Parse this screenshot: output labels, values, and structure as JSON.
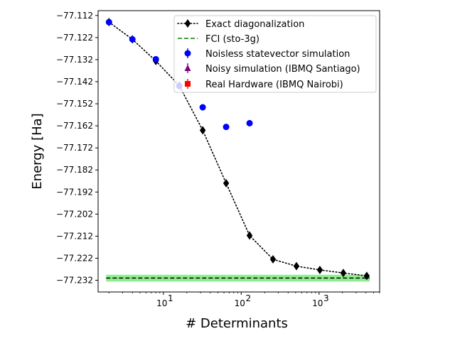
{
  "chart_data": {
    "type": "scatter",
    "xlabel": "# Determinants",
    "ylabel": "Energy [Ha]",
    "xscale": "log",
    "xlim": [
      1.45,
      6000
    ],
    "ylim": [
      -77.2373,
      -77.1098
    ],
    "x_ticks": [
      {
        "value": 10,
        "base": "10",
        "exp": "1"
      },
      {
        "value": 100,
        "base": "10",
        "exp": "2"
      },
      {
        "value": 1000,
        "base": "10",
        "exp": "3"
      }
    ],
    "y_ticks": [
      -77.112,
      -77.122,
      -77.132,
      -77.142,
      -77.152,
      -77.162,
      -77.172,
      -77.182,
      -77.192,
      -77.202,
      -77.212,
      -77.222,
      -77.232
    ],
    "y_tick_labels": [
      "−77.112",
      "−77.122",
      "−77.132",
      "−77.142",
      "−77.152",
      "−77.162",
      "−77.172",
      "−77.182",
      "−77.192",
      "−77.202",
      "−77.212",
      "−77.222",
      "−77.232"
    ],
    "grid": false,
    "legend_position": "upper-right",
    "series": [
      {
        "name": "Exact diagonalization",
        "style": "dotted-line-diamond",
        "color": "#000000",
        "x": [
          2,
          4,
          8,
          16,
          32,
          64,
          128,
          256,
          512,
          1024,
          2048,
          4096
        ],
        "y": [
          -77.115,
          -77.1228,
          -77.1326,
          -77.1438,
          -77.164,
          -77.188,
          -77.2117,
          -77.2225,
          -77.2256,
          -77.2273,
          -77.2287,
          -77.23
        ]
      },
      {
        "name": "FCI (sto-3g)",
        "style": "dashed-line",
        "color": "#008000",
        "band_color": "#90ee90",
        "band": [
          -77.2326,
          -77.2295
        ],
        "x": [
          2,
          4096
        ],
        "y": [
          -77.231,
          -77.231
        ]
      },
      {
        "name": "Noisless statevector simulation",
        "style": "circle",
        "color": "#0000ff",
        "x": [
          2,
          4,
          8,
          16,
          32,
          64,
          128
        ],
        "y": [
          -77.115,
          -77.1228,
          -77.1318,
          -77.1439,
          -77.1536,
          -77.1625,
          -77.1608
        ]
      },
      {
        "name": "Noisy simulation (IBMQ Santiago)",
        "style": "triangle",
        "color": "#800080",
        "x": [],
        "y": []
      },
      {
        "name": "Real Hardware (IBMQ Nairobi)",
        "style": "square",
        "color": "#ff0000",
        "x": [],
        "y": []
      }
    ]
  }
}
